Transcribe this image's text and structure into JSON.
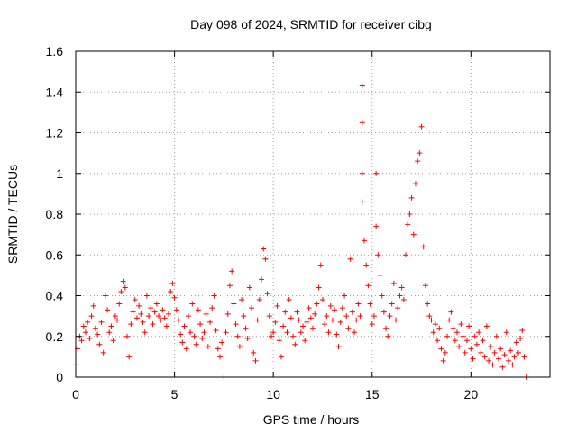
{
  "chart_data": {
    "type": "scatter",
    "title": "Day 098 of 2024, SRMTID for receiver cibg",
    "xlabel": "GPS time / hours",
    "ylabel": "SRMTID / TECUs",
    "xlim": [
      0,
      24
    ],
    "ylim": [
      0,
      1.6
    ],
    "xticks": [
      0,
      5,
      10,
      15,
      20
    ],
    "xtick_labels": [
      "0",
      "5",
      "10",
      "15",
      "20"
    ],
    "yticks": [
      0,
      0.2,
      0.4,
      0.6,
      0.8,
      1.0,
      1.2,
      1.4,
      1.6
    ],
    "ytick_labels": [
      "0",
      "0.2",
      "0.4",
      "0.6",
      "0.8",
      "1",
      "1.2",
      "1.4",
      "1.6"
    ],
    "grid": true,
    "marker": "plus",
    "color": "#ff0000",
    "series": [
      {
        "name": "SRMTID",
        "points": [
          [
            0.0,
            0.06
          ],
          [
            0.1,
            0.14
          ],
          [
            0.2,
            0.2
          ],
          [
            0.3,
            0.18
          ],
          [
            0.4,
            0.25
          ],
          [
            0.5,
            0.22
          ],
          [
            0.6,
            0.27
          ],
          [
            0.7,
            0.19
          ],
          [
            0.8,
            0.3
          ],
          [
            0.9,
            0.35
          ],
          [
            1.0,
            0.24
          ],
          [
            1.1,
            0.21
          ],
          [
            1.2,
            0.16
          ],
          [
            1.3,
            0.27
          ],
          [
            1.4,
            0.12
          ],
          [
            1.5,
            0.4
          ],
          [
            1.6,
            0.33
          ],
          [
            1.7,
            0.22
          ],
          [
            1.8,
            0.25
          ],
          [
            1.9,
            0.18
          ],
          [
            2.0,
            0.3
          ],
          [
            2.1,
            0.28
          ],
          [
            2.2,
            0.36
          ],
          [
            2.3,
            0.42
          ],
          [
            2.4,
            0.47
          ],
          [
            2.5,
            0.44
          ],
          [
            2.6,
            0.2
          ],
          [
            2.7,
            0.1
          ],
          [
            2.8,
            0.26
          ],
          [
            2.9,
            0.32
          ],
          [
            3.0,
            0.38
          ],
          [
            3.1,
            0.29
          ],
          [
            3.2,
            0.35
          ],
          [
            3.3,
            0.31
          ],
          [
            3.4,
            0.27
          ],
          [
            3.5,
            0.22
          ],
          [
            3.6,
            0.4
          ],
          [
            3.7,
            0.3
          ],
          [
            3.8,
            0.34
          ],
          [
            3.9,
            0.26
          ],
          [
            4.0,
            0.32
          ],
          [
            4.1,
            0.36
          ],
          [
            4.2,
            0.3
          ],
          [
            4.3,
            0.28
          ],
          [
            4.4,
            0.33
          ],
          [
            4.5,
            0.29
          ],
          [
            4.6,
            0.25
          ],
          [
            4.7,
            0.31
          ],
          [
            4.8,
            0.42
          ],
          [
            4.9,
            0.46
          ],
          [
            5.0,
            0.39
          ],
          [
            5.1,
            0.33
          ],
          [
            5.2,
            0.28
          ],
          [
            5.3,
            0.21
          ],
          [
            5.4,
            0.17
          ],
          [
            5.5,
            0.25
          ],
          [
            5.6,
            0.14
          ],
          [
            5.7,
            0.3
          ],
          [
            5.8,
            0.22
          ],
          [
            5.9,
            0.36
          ],
          [
            6.0,
            0.2
          ],
          [
            6.1,
            0.16
          ],
          [
            6.2,
            0.33
          ],
          [
            6.3,
            0.26
          ],
          [
            6.4,
            0.19
          ],
          [
            6.5,
            0.22
          ],
          [
            6.6,
            0.31
          ],
          [
            6.7,
            0.15
          ],
          [
            6.8,
            0.27
          ],
          [
            6.9,
            0.34
          ],
          [
            7.0,
            0.4
          ],
          [
            7.1,
            0.23
          ],
          [
            7.2,
            0.14
          ],
          [
            7.3,
            0.1
          ],
          [
            7.4,
            0.17
          ],
          [
            7.5,
            0.0
          ],
          [
            7.6,
            0.22
          ],
          [
            7.7,
            0.31
          ],
          [
            7.8,
            0.45
          ],
          [
            7.9,
            0.52
          ],
          [
            8.0,
            0.36
          ],
          [
            8.1,
            0.26
          ],
          [
            8.2,
            0.2
          ],
          [
            8.3,
            0.15
          ],
          [
            8.4,
            0.38
          ],
          [
            8.5,
            0.3
          ],
          [
            8.6,
            0.24
          ],
          [
            8.7,
            0.19
          ],
          [
            8.8,
            0.44
          ],
          [
            8.9,
            0.34
          ],
          [
            9.0,
            0.12
          ],
          [
            9.1,
            0.08
          ],
          [
            9.2,
            0.28
          ],
          [
            9.3,
            0.38
          ],
          [
            9.4,
            0.48
          ],
          [
            9.5,
            0.63
          ],
          [
            9.6,
            0.58
          ],
          [
            9.7,
            0.41
          ],
          [
            9.8,
            0.3
          ],
          [
            9.9,
            0.2
          ],
          [
            10.0,
            0.22
          ],
          [
            10.1,
            0.27
          ],
          [
            10.2,
            0.35
          ],
          [
            10.3,
            0.18
          ],
          [
            10.4,
            0.1
          ],
          [
            10.5,
            0.25
          ],
          [
            10.6,
            0.32
          ],
          [
            10.7,
            0.22
          ],
          [
            10.8,
            0.38
          ],
          [
            10.9,
            0.29
          ],
          [
            11.0,
            0.2
          ],
          [
            11.1,
            0.16
          ],
          [
            11.2,
            0.32
          ],
          [
            11.3,
            0.28
          ],
          [
            11.4,
            0.22
          ],
          [
            11.5,
            0.25
          ],
          [
            11.6,
            0.18
          ],
          [
            11.7,
            0.27
          ],
          [
            11.8,
            0.34
          ],
          [
            11.9,
            0.29
          ],
          [
            12.0,
            0.24
          ],
          [
            12.1,
            0.31
          ],
          [
            12.2,
            0.36
          ],
          [
            12.3,
            0.44
          ],
          [
            12.4,
            0.55
          ],
          [
            12.5,
            0.38
          ],
          [
            12.6,
            0.26
          ],
          [
            12.7,
            0.3
          ],
          [
            12.8,
            0.22
          ],
          [
            12.9,
            0.35
          ],
          [
            13.0,
            0.28
          ],
          [
            13.1,
            0.33
          ],
          [
            13.2,
            0.21
          ],
          [
            13.3,
            0.15
          ],
          [
            13.4,
            0.27
          ],
          [
            13.5,
            0.34
          ],
          [
            13.6,
            0.4
          ],
          [
            13.7,
            0.3
          ],
          [
            13.8,
            0.24
          ],
          [
            13.9,
            0.58
          ],
          [
            14.0,
            0.32
          ],
          [
            14.1,
            0.22
          ],
          [
            14.2,
            0.28
          ],
          [
            14.3,
            0.36
          ],
          [
            14.4,
            0.3
          ],
          [
            14.5,
            1.43
          ],
          [
            14.5,
            1.25
          ],
          [
            14.5,
            1.0
          ],
          [
            14.5,
            0.86
          ],
          [
            14.6,
            0.67
          ],
          [
            14.7,
            0.55
          ],
          [
            14.8,
            0.45
          ],
          [
            14.9,
            0.36
          ],
          [
            15.0,
            0.26
          ],
          [
            15.1,
            0.3
          ],
          [
            15.2,
            1.0
          ],
          [
            15.2,
            0.74
          ],
          [
            15.3,
            0.6
          ],
          [
            15.4,
            0.5
          ],
          [
            15.5,
            0.4
          ],
          [
            15.6,
            0.32
          ],
          [
            15.7,
            0.24
          ],
          [
            15.8,
            0.2
          ],
          [
            15.9,
            0.3
          ],
          [
            16.0,
            0.36
          ],
          [
            16.1,
            0.46
          ],
          [
            16.2,
            0.28
          ],
          [
            16.3,
            0.34
          ],
          [
            16.4,
            0.4
          ],
          [
            16.5,
            0.44
          ],
          [
            16.6,
            0.38
          ],
          [
            16.7,
            0.6
          ],
          [
            16.8,
            0.75
          ],
          [
            16.9,
            0.8
          ],
          [
            17.0,
            0.88
          ],
          [
            17.1,
            0.7
          ],
          [
            17.2,
            0.95
          ],
          [
            17.3,
            1.06
          ],
          [
            17.4,
            1.1
          ],
          [
            17.5,
            1.23
          ],
          [
            17.6,
            0.64
          ],
          [
            17.7,
            0.45
          ],
          [
            17.8,
            0.36
          ],
          [
            17.9,
            0.3
          ],
          [
            18.0,
            0.28
          ],
          [
            18.1,
            0.22
          ],
          [
            18.2,
            0.26
          ],
          [
            18.3,
            0.18
          ],
          [
            18.4,
            0.24
          ],
          [
            18.5,
            0.14
          ],
          [
            18.6,
            0.08
          ],
          [
            18.7,
            0.12
          ],
          [
            18.8,
            0.2
          ],
          [
            18.9,
            0.28
          ],
          [
            19.0,
            0.32
          ],
          [
            19.1,
            0.24
          ],
          [
            19.2,
            0.18
          ],
          [
            19.3,
            0.22
          ],
          [
            19.4,
            0.15
          ],
          [
            19.5,
            0.26
          ],
          [
            19.6,
            0.2
          ],
          [
            19.7,
            0.12
          ],
          [
            19.8,
            0.18
          ],
          [
            19.9,
            0.25
          ],
          [
            20.0,
            0.14
          ],
          [
            20.1,
            0.09
          ],
          [
            20.2,
            0.2
          ],
          [
            20.3,
            0.16
          ],
          [
            20.4,
            0.22
          ],
          [
            20.5,
            0.12
          ],
          [
            20.6,
            0.18
          ],
          [
            20.7,
            0.1
          ],
          [
            20.8,
            0.25
          ],
          [
            20.9,
            0.08
          ],
          [
            21.0,
            0.15
          ],
          [
            21.1,
            0.06
          ],
          [
            21.2,
            0.12
          ],
          [
            21.3,
            0.2
          ],
          [
            21.4,
            0.09
          ],
          [
            21.5,
            0.14
          ],
          [
            21.6,
            0.05
          ],
          [
            21.7,
            0.11
          ],
          [
            21.8,
            0.22
          ],
          [
            21.9,
            0.08
          ],
          [
            22.0,
            0.13
          ],
          [
            22.1,
            0.06
          ],
          [
            22.2,
            0.1
          ],
          [
            22.3,
            0.17
          ],
          [
            22.4,
            0.12
          ],
          [
            22.5,
            0.19
          ],
          [
            22.6,
            0.23
          ],
          [
            22.7,
            0.1
          ],
          [
            22.8,
            0.0
          ]
        ]
      }
    ]
  }
}
